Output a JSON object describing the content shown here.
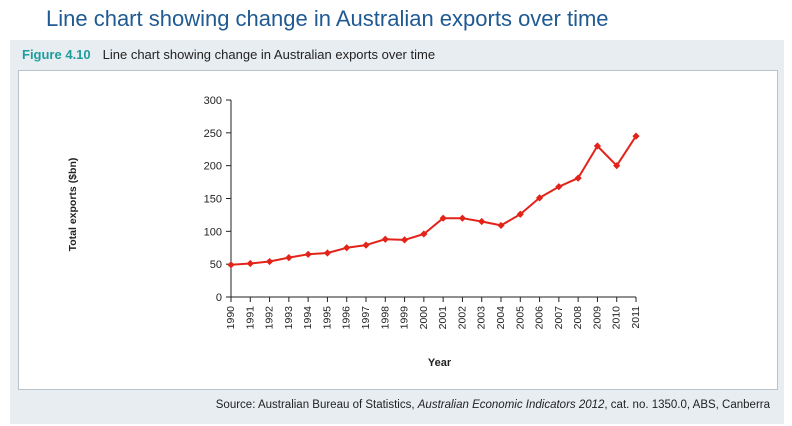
{
  "page": {
    "title": "Line chart showing change in Australian exports over time"
  },
  "figure": {
    "label": "Figure 4.10",
    "caption": "Line chart showing change in Australian exports over time",
    "source_prefix": "Source: Australian Bureau of Statistics, ",
    "source_title": "Australian Economic Indicators 2012",
    "source_suffix": ", cat. no. 1350.0, ABS, Canberra"
  },
  "colors": {
    "line": "#e2231a",
    "title": "#1f5a92",
    "figure_label": "#1f9c9c",
    "frame_bg": "#e8edf2"
  },
  "chart_data": {
    "type": "line",
    "title": "",
    "xlabel": "Year",
    "ylabel": "Total exports ($bn)",
    "ylim": [
      0,
      300
    ],
    "yticks": [
      0,
      50,
      100,
      150,
      200,
      250,
      300
    ],
    "grid": false,
    "categories": [
      "1990",
      "1991",
      "1992",
      "1993",
      "1994",
      "1995",
      "1996",
      "1997",
      "1998",
      "1999",
      "2000",
      "2001",
      "2002",
      "2003",
      "2004",
      "2005",
      "2006",
      "2007",
      "2008",
      "2009",
      "2010",
      "2011"
    ],
    "series": [
      {
        "name": "Total exports",
        "values": [
          49,
          51,
          54,
          60,
          65,
          67,
          75,
          79,
          88,
          87,
          96,
          120,
          120,
          115,
          109,
          126,
          151,
          168,
          181,
          230,
          200,
          245
        ]
      }
    ]
  }
}
